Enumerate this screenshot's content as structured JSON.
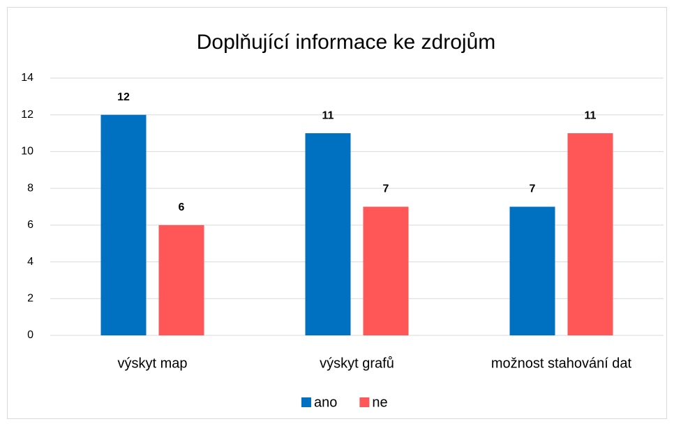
{
  "chart_data": {
    "type": "bar",
    "title": "Doplňující informace ke zdrojům",
    "categories": [
      "výskyt map",
      "výskyt grafů",
      "možnost stahování dat"
    ],
    "series": [
      {
        "name": "ano",
        "color": "#0070c0",
        "values": [
          12,
          11,
          7
        ]
      },
      {
        "name": "ne",
        "color": "#ff5757",
        "values": [
          6,
          7,
          11
        ]
      }
    ],
    "ylim": [
      0,
      14
    ],
    "yticks": [
      0,
      2,
      4,
      6,
      8,
      10,
      12,
      14
    ],
    "grid": true,
    "legend": "bottom"
  }
}
